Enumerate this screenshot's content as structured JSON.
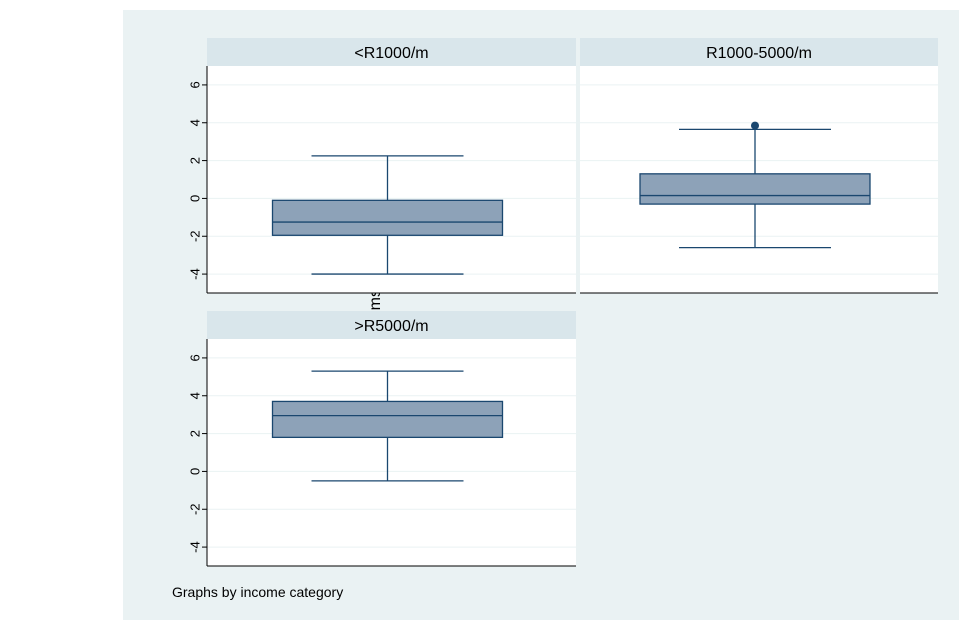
{
  "chart_data": {
    "type": "boxplot",
    "ylabel": "sessumscore",
    "note": "Graphs by income category",
    "ylim": [
      -5,
      7
    ],
    "y_ticks": [
      -4,
      -2,
      0,
      2,
      4,
      6
    ],
    "grid": true,
    "colors": {
      "outer_bg": "#eaf2f3",
      "panel_header": "#d9e6eb",
      "box_fill": "#8da2b8",
      "box_line": "#1a476f",
      "grid": "#eaf2f3"
    },
    "panels": [
      {
        "title": "<R1000/m",
        "min": -4.0,
        "q1": -1.95,
        "median": -1.25,
        "q3": -0.1,
        "max": 2.25,
        "outliers": []
      },
      {
        "title": "R1000-5000/m",
        "min": -2.6,
        "q1": -0.3,
        "median": 0.15,
        "q3": 1.3,
        "max": 3.65,
        "outliers": [
          3.85
        ]
      },
      {
        "title": ">R5000/m",
        "min": -0.5,
        "q1": 1.8,
        "median": 2.95,
        "q3": 3.7,
        "max": 5.3,
        "outliers": []
      }
    ]
  }
}
